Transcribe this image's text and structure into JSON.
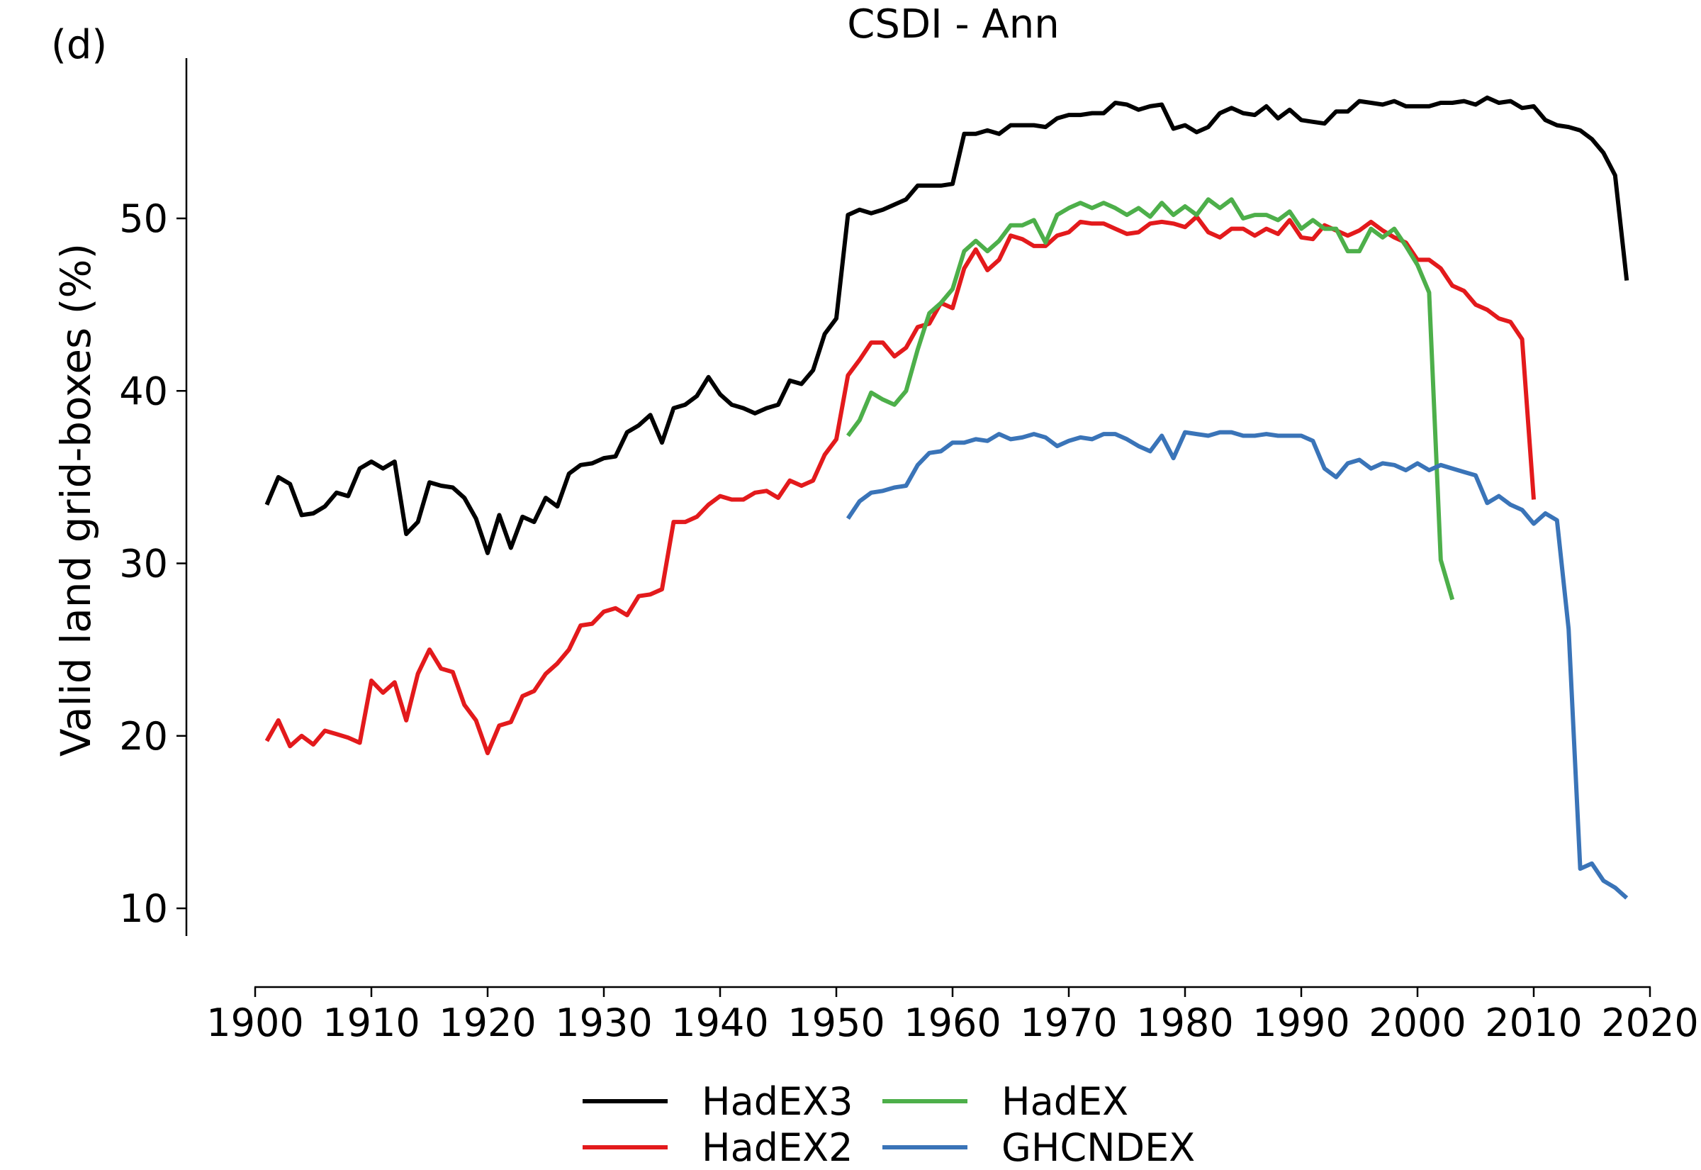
{
  "panel_label": "(d)",
  "chart_data": {
    "type": "line",
    "title": "CSDI - Ann",
    "xlabel": "",
    "ylabel": "Valid land grid-boxes (%)",
    "xlim": [
      1900,
      2020
    ],
    "ylim": [
      9,
      60
    ],
    "xticks": [
      1900,
      1910,
      1920,
      1930,
      1940,
      1950,
      1960,
      1970,
      1980,
      1990,
      2000,
      2010,
      2020
    ],
    "yticks": [
      10,
      20,
      30,
      40,
      50
    ],
    "grid": false,
    "legend_position": "bottom",
    "series": [
      {
        "name": "HadEX3",
        "color": "#000000",
        "x": [
          1901,
          1902,
          1903,
          1904,
          1905,
          1906,
          1907,
          1908,
          1909,
          1910,
          1911,
          1912,
          1913,
          1914,
          1915,
          1916,
          1917,
          1918,
          1919,
          1920,
          1921,
          1922,
          1923,
          1924,
          1925,
          1926,
          1927,
          1928,
          1929,
          1930,
          1931,
          1932,
          1933,
          1934,
          1935,
          1936,
          1937,
          1938,
          1939,
          1940,
          1941,
          1942,
          1943,
          1944,
          1945,
          1946,
          1947,
          1948,
          1949,
          1950,
          1951,
          1952,
          1953,
          1954,
          1955,
          1956,
          1957,
          1958,
          1959,
          1960,
          1961,
          1962,
          1963,
          1964,
          1965,
          1966,
          1967,
          1968,
          1969,
          1970,
          1971,
          1972,
          1973,
          1974,
          1975,
          1976,
          1977,
          1978,
          1979,
          1980,
          1981,
          1982,
          1983,
          1984,
          1985,
          1986,
          1987,
          1988,
          1989,
          1990,
          1991,
          1992,
          1993,
          1994,
          1995,
          1996,
          1997,
          1998,
          1999,
          2000,
          2001,
          2002,
          2003,
          2004,
          2005,
          2006,
          2007,
          2008,
          2009,
          2010,
          2011,
          2012,
          2013,
          2014,
          2015,
          2016,
          2017,
          2018
        ],
        "y": [
          33.4,
          35.0,
          34.6,
          32.8,
          32.9,
          33.3,
          34.1,
          33.9,
          35.5,
          35.9,
          35.5,
          35.9,
          31.7,
          32.4,
          34.7,
          34.5,
          34.4,
          33.8,
          32.6,
          30.6,
          32.8,
          30.9,
          32.7,
          32.4,
          33.8,
          33.3,
          35.2,
          35.7,
          35.8,
          36.1,
          36.2,
          37.6,
          38.0,
          38.6,
          37.0,
          39.0,
          39.2,
          39.7,
          40.8,
          39.8,
          39.2,
          39.0,
          38.7,
          39.0,
          39.2,
          40.6,
          40.4,
          41.2,
          43.3,
          44.2,
          50.2,
          50.5,
          50.3,
          50.5,
          50.8,
          51.1,
          51.9,
          51.9,
          51.9,
          52.0,
          54.9,
          54.9,
          55.1,
          54.9,
          55.4,
          55.4,
          55.4,
          55.3,
          55.8,
          56.0,
          56.0,
          56.1,
          56.1,
          56.7,
          56.6,
          56.3,
          56.5,
          56.6,
          55.2,
          55.4,
          55.0,
          55.3,
          56.1,
          56.4,
          56.1,
          56.0,
          56.5,
          55.8,
          56.3,
          55.7,
          55.6,
          55.5,
          56.2,
          56.2,
          56.8,
          56.7,
          56.6,
          56.8,
          56.5,
          56.5,
          56.5,
          56.7,
          56.7,
          56.8,
          56.6,
          57.0,
          56.7,
          56.8,
          56.4,
          56.5,
          55.7,
          55.4,
          55.3,
          55.1,
          54.6,
          53.8,
          52.5,
          46.4
        ]
      },
      {
        "name": "HadEX2",
        "color": "#e31a1c",
        "x": [
          1901,
          1902,
          1903,
          1904,
          1905,
          1906,
          1907,
          1908,
          1909,
          1910,
          1911,
          1912,
          1913,
          1914,
          1915,
          1916,
          1917,
          1918,
          1919,
          1920,
          1921,
          1922,
          1923,
          1924,
          1925,
          1926,
          1927,
          1928,
          1929,
          1930,
          1931,
          1932,
          1933,
          1934,
          1935,
          1936,
          1937,
          1938,
          1939,
          1940,
          1941,
          1942,
          1943,
          1944,
          1945,
          1946,
          1947,
          1948,
          1949,
          1950,
          1951,
          1952,
          1953,
          1954,
          1955,
          1956,
          1957,
          1958,
          1959,
          1960,
          1961,
          1962,
          1963,
          1964,
          1965,
          1966,
          1967,
          1968,
          1969,
          1970,
          1971,
          1972,
          1973,
          1974,
          1975,
          1976,
          1977,
          1978,
          1979,
          1980,
          1981,
          1982,
          1983,
          1984,
          1985,
          1986,
          1987,
          1988,
          1989,
          1990,
          1991,
          1992,
          1993,
          1994,
          1995,
          1996,
          1997,
          1998,
          1999,
          2000,
          2001,
          2002,
          2003,
          2004,
          2005,
          2006,
          2007,
          2008,
          2009,
          2010
        ],
        "y": [
          19.7,
          20.9,
          19.4,
          20.0,
          19.5,
          20.3,
          20.1,
          19.9,
          19.6,
          23.2,
          22.5,
          23.1,
          20.9,
          23.6,
          25.0,
          23.9,
          23.7,
          21.8,
          20.9,
          19.0,
          20.6,
          20.8,
          22.3,
          22.6,
          23.6,
          24.2,
          25.0,
          26.4,
          26.5,
          27.2,
          27.4,
          27.0,
          28.1,
          28.2,
          28.5,
          32.4,
          32.4,
          32.7,
          33.4,
          33.9,
          33.7,
          33.7,
          34.1,
          34.2,
          33.8,
          34.8,
          34.5,
          34.8,
          36.3,
          37.2,
          40.9,
          41.8,
          42.8,
          42.8,
          42.0,
          42.5,
          43.7,
          43.9,
          45.1,
          44.8,
          47.1,
          48.2,
          47.0,
          47.6,
          49.0,
          48.8,
          48.4,
          48.4,
          49.0,
          49.2,
          49.8,
          49.7,
          49.7,
          49.4,
          49.1,
          49.2,
          49.7,
          49.8,
          49.7,
          49.5,
          50.1,
          49.2,
          48.9,
          49.4,
          49.4,
          49.0,
          49.4,
          49.1,
          49.9,
          48.9,
          48.8,
          49.6,
          49.3,
          49.0,
          49.3,
          49.8,
          49.3,
          48.9,
          48.6,
          47.6,
          47.6,
          47.1,
          46.1,
          45.8,
          45.0,
          44.7,
          44.2,
          44.0,
          43.0,
          33.7
        ]
      },
      {
        "name": "HadEX",
        "color": "#4daf4a",
        "x": [
          1951,
          1952,
          1953,
          1954,
          1955,
          1956,
          1957,
          1958,
          1959,
          1960,
          1961,
          1962,
          1963,
          1964,
          1965,
          1966,
          1967,
          1968,
          1969,
          1970,
          1971,
          1972,
          1973,
          1974,
          1975,
          1976,
          1977,
          1978,
          1979,
          1980,
          1981,
          1982,
          1983,
          1984,
          1985,
          1986,
          1987,
          1988,
          1989,
          1990,
          1991,
          1992,
          1993,
          1994,
          1995,
          1996,
          1997,
          1998,
          1999,
          2000,
          2001,
          2002,
          2003
        ],
        "y": [
          37.4,
          38.3,
          39.9,
          39.5,
          39.2,
          40.0,
          42.4,
          44.5,
          45.1,
          45.9,
          48.1,
          48.7,
          48.1,
          48.7,
          49.6,
          49.6,
          49.9,
          48.6,
          50.2,
          50.6,
          50.9,
          50.6,
          50.9,
          50.6,
          50.2,
          50.6,
          50.1,
          50.9,
          50.2,
          50.7,
          50.2,
          51.1,
          50.6,
          51.1,
          50.0,
          50.2,
          50.2,
          49.9,
          50.4,
          49.4,
          49.9,
          49.4,
          49.4,
          48.1,
          48.1,
          49.4,
          48.9,
          49.4,
          48.4,
          47.3,
          45.7,
          30.2,
          27.9
        ]
      },
      {
        "name": "GHCNDEX",
        "color": "#3a74b8",
        "x": [
          1951,
          1952,
          1953,
          1954,
          1955,
          1956,
          1957,
          1958,
          1959,
          1960,
          1961,
          1962,
          1963,
          1964,
          1965,
          1966,
          1967,
          1968,
          1969,
          1970,
          1971,
          1972,
          1973,
          1974,
          1975,
          1976,
          1977,
          1978,
          1979,
          1980,
          1981,
          1982,
          1983,
          1984,
          1985,
          1986,
          1987,
          1988,
          1989,
          1990,
          1991,
          1992,
          1993,
          1994,
          1995,
          1996,
          1997,
          1998,
          1999,
          2000,
          2001,
          2002,
          2003,
          2004,
          2005,
          2006,
          2007,
          2008,
          2009,
          2010,
          2011,
          2012,
          2013,
          2014,
          2015,
          2016,
          2017,
          2018
        ],
        "y": [
          32.6,
          33.6,
          34.1,
          34.2,
          34.4,
          34.5,
          35.7,
          36.4,
          36.5,
          37.0,
          37.0,
          37.2,
          37.1,
          37.5,
          37.2,
          37.3,
          37.5,
          37.3,
          36.8,
          37.1,
          37.3,
          37.2,
          37.5,
          37.5,
          37.2,
          36.8,
          36.5,
          37.4,
          36.1,
          37.6,
          37.5,
          37.4,
          37.6,
          37.6,
          37.4,
          37.4,
          37.5,
          37.4,
          37.4,
          37.4,
          37.1,
          35.5,
          35.0,
          35.8,
          36.0,
          35.5,
          35.8,
          35.7,
          35.4,
          35.8,
          35.4,
          35.7,
          35.5,
          35.3,
          35.1,
          33.5,
          33.9,
          33.4,
          33.1,
          32.3,
          32.9,
          32.5,
          26.2,
          12.3,
          12.6,
          11.6,
          11.2,
          10.6
        ]
      }
    ]
  }
}
